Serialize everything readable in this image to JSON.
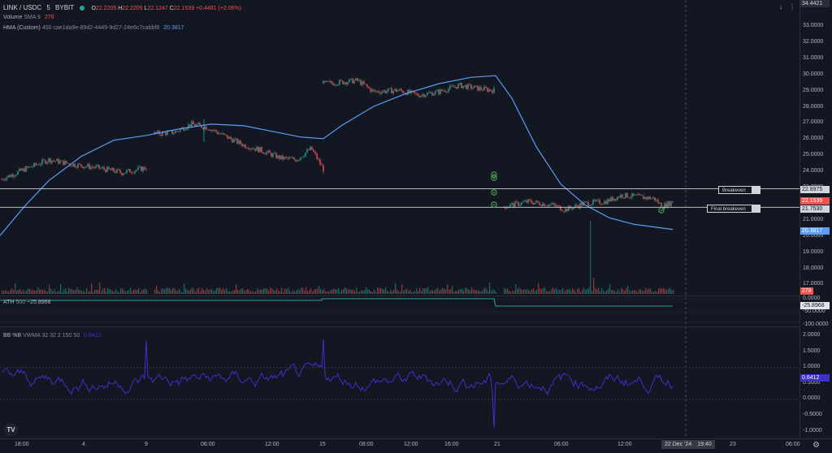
{
  "header": {
    "symbol": "LINK / USDC",
    "interval": "5",
    "exchange": "BYBIT",
    "ohlc": {
      "o_label": "O",
      "o": "22.2205",
      "h_label": "H",
      "h": "22.2205",
      "l_label": "L",
      "l": "22.1247",
      "c_label": "C",
      "c": "22.1539",
      "change": "+0.4481 (+2.06%)"
    }
  },
  "legends": {
    "volume": {
      "name": "Volume",
      "params": "SMA 9",
      "value": "278"
    },
    "hma": {
      "name": "HMA (Custom)",
      "params": "450 cae1da9e-89d2-4449-9d27-24e6c7cabbf8",
      "value": "20.3817"
    },
    "ath": {
      "name": "ATH",
      "params": "500",
      "value": "−25.8968"
    },
    "bb": {
      "name": "BB %B",
      "params": "VWMA 32 32 2 150 50",
      "value": "0.6412"
    }
  },
  "price_axis": {
    "top_value": "34.4421",
    "ticks": [
      "33.0000",
      "32.0000",
      "31.0000",
      "30.0000",
      "29.0000",
      "28.0000",
      "27.0000",
      "26.0000",
      "25.0000",
      "24.0000",
      "23.0000",
      "22.0000",
      "21.0000",
      "20.0000",
      "19.0000",
      "18.0000",
      "17.0000"
    ],
    "badges": {
      "breakeven": "22.8975",
      "close": "22.1539",
      "final": "21.7530",
      "hma": "20.3817",
      "volume": "278"
    }
  },
  "ath_axis": {
    "ticks": [
      "0.0000",
      "-50.0000",
      "-100.0000"
    ],
    "badge": "-25.8968"
  },
  "bb_axis": {
    "ticks": [
      "2.0000",
      "1.5000",
      "1.0000",
      "0.5000",
      "0.0000",
      "-0.5000",
      "-1.0000"
    ],
    "badge": "0.6412"
  },
  "lines": {
    "breakeven": "Breakeven",
    "final_breakeven": "Final breakeven"
  },
  "time_axis": {
    "labels": [
      "18:00",
      "4",
      "9",
      "06:00",
      "12:00",
      "15",
      "08:00",
      "12:00",
      "16:00",
      "21",
      "06:00",
      "12:00",
      "23",
      "06:00"
    ],
    "crosshair": "22 Dec '24",
    "crosshair_time": "19:40"
  },
  "colors": {
    "background": "#131722",
    "up": "#26a69a",
    "down": "#ef5350",
    "hma": "#5b9cf6",
    "bb": "#3f2fd0",
    "signal": "#4caf50"
  }
}
